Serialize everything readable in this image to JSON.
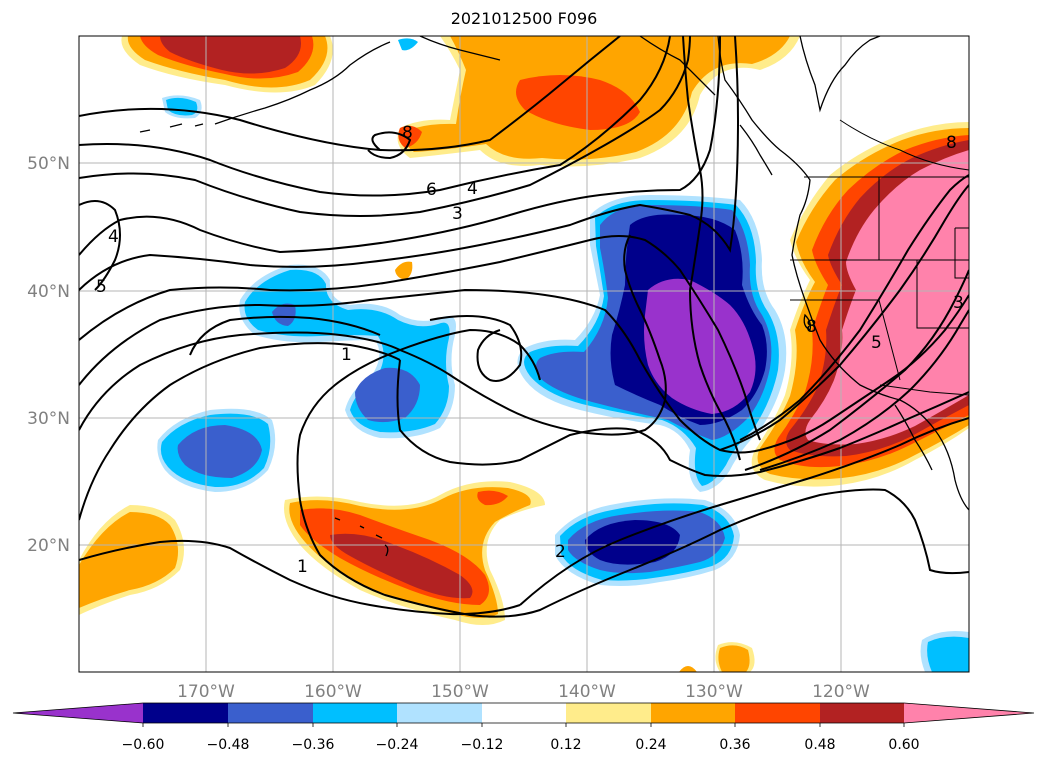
{
  "title": "2021012500 F096",
  "map": {
    "lat_labels": [
      "50°N",
      "40°N",
      "30°N",
      "20°N"
    ],
    "lon_labels": [
      "170°W",
      "160°W",
      "150°W",
      "140°W",
      "130°W",
      "120°W"
    ],
    "label_color": "#808080",
    "contour_labels": [
      "8",
      "6",
      "4",
      "3",
      "4",
      "5",
      "1",
      "2",
      "1",
      "8",
      "5",
      "3",
      "8"
    ]
  },
  "colorbar": {
    "ticks": [
      "−0.60",
      "−0.48",
      "−0.36",
      "−0.24",
      "−0.12",
      "0.12",
      "0.24",
      "0.36",
      "0.48",
      "0.60"
    ],
    "colors": [
      "#9932cc",
      "#00008b",
      "#3a5fcd",
      "#00bfff",
      "#b0e2ff",
      "#ffffff",
      "#ffec8b",
      "#ffa500",
      "#ff4500",
      "#b22222",
      "#ff82ab"
    ]
  }
}
